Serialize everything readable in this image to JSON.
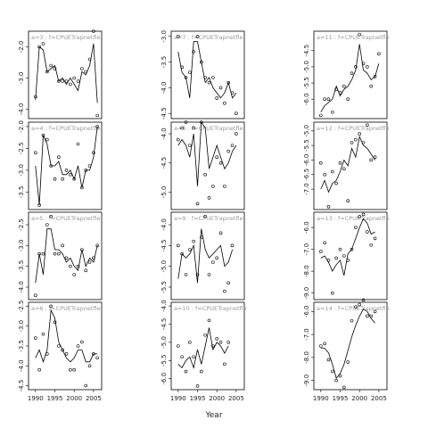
{
  "xlabel": "Year",
  "chart_data": [
    {
      "type": "scatter",
      "title": "a=3 : f=CPUETrapnetfle",
      "xlim": [
        1988.2,
        2007.1
      ],
      "x": [
        1990,
        1991,
        1992,
        1993,
        1994,
        1995,
        1996,
        1997,
        1998,
        1999,
        2000,
        2001,
        2002,
        2003,
        2004,
        2005,
        2006
      ],
      "values": [
        -3.6,
        -2.0,
        -1.9,
        -2.8,
        -2.6,
        -2.7,
        -3.1,
        -3.1,
        -3.1,
        -3.2,
        -3.0,
        -3.1,
        -2.7,
        -2.8,
        -2.4,
        -1.5,
        -4.2
      ],
      "fit": [
        -3.7,
        -2.0,
        -2.1,
        -2.8,
        -2.7,
        -2.6,
        -3.1,
        -3.0,
        -3.2,
        -3.0,
        -3.2,
        -3.4,
        -2.8,
        -2.9,
        -2.6,
        -1.9,
        -3.8
      ],
      "ylim": [
        -4.3,
        -1.5
      ],
      "yticks": [
        {
          "value": -2,
          "label": "-2.0"
        },
        {
          "value": -3,
          "label": "-3.0"
        },
        {
          "value": -4,
          "label": "-4.0"
        }
      ]
    },
    {
      "type": "scatter",
      "title": "a=4 : f=CPUETrapnetfle",
      "xlim": [
        1988.2,
        2007.1
      ],
      "x": [
        1990,
        1991,
        1992,
        1993,
        1994,
        1995,
        1996,
        1997,
        1998,
        1999,
        2000,
        2001,
        2002,
        2003,
        2004,
        2005,
        2006
      ],
      "values": [
        -2.6,
        -3.8,
        -2.2,
        -2.3,
        -2.9,
        -3.2,
        -2.7,
        -3.2,
        -3.0,
        -3.1,
        -3.2,
        -2.4,
        -3.4,
        -3.0,
        -2.9,
        -2.6,
        -2.0
      ],
      "fit": [
        -2.9,
        -3.8,
        -2.2,
        -2.4,
        -2.9,
        -2.9,
        -2.8,
        -3.1,
        -3.1,
        -3.0,
        -3.2,
        -2.9,
        -3.4,
        -3.0,
        -3.0,
        -2.7,
        -2.0
      ],
      "ylim": [
        -3.9,
        -1.9
      ],
      "yticks": [
        {
          "value": -2,
          "label": "-2.0"
        },
        -2.5,
        {
          "value": -3,
          "label": "-3.0"
        },
        -3.5
      ]
    },
    {
      "type": "scatter",
      "title": "a=5 : f=CPUETrapnetfle",
      "xlim": [
        1988.2,
        2007.1
      ],
      "x": [
        1990,
        1991,
        1992,
        1993,
        1994,
        1995,
        1996,
        1997,
        1998,
        1999,
        2000,
        2001,
        2002,
        2003,
        2004,
        2005,
        2006
      ],
      "values": [
        -4.2,
        -3.2,
        -3.2,
        -2.5,
        -2.3,
        -3.2,
        -3.2,
        -3.0,
        -3.3,
        -3.5,
        -3.7,
        -3.5,
        -3.1,
        -3.6,
        -3.4,
        -3.3,
        -3.0
      ],
      "fit": [
        -3.9,
        -3.2,
        -3.7,
        -2.6,
        -2.6,
        -3.1,
        -3.1,
        -3.2,
        -3.4,
        -3.3,
        -3.5,
        -3.6,
        -3.1,
        -3.5,
        -3.3,
        -3.4,
        -3.0
      ],
      "ylim": [
        -4.3,
        -2.2
      ],
      "yticks": [
        -2.5,
        {
          "value": -3,
          "label": "-3.0"
        },
        -3.5,
        {
          "value": -4,
          "label": "-4.0"
        }
      ]
    },
    {
      "type": "scatter",
      "title": "a=6 : f=CPUETrapnetfle",
      "xlim": [
        1988.2,
        2007.1
      ],
      "x": [
        1990,
        1991,
        1992,
        1993,
        1994,
        1995,
        1996,
        1997,
        1998,
        1999,
        2000,
        2001,
        2002,
        2003,
        2004,
        2005,
        2006
      ],
      "values": [
        -3.3,
        -4.1,
        -3.2,
        -3.7,
        -2.5,
        -2.9,
        -3.5,
        -3.6,
        -3.7,
        -4.1,
        -4.1,
        -3.5,
        -3.4,
        -4.5,
        -4.0,
        -3.7,
        -3.8
      ],
      "fit": [
        -3.8,
        -3.6,
        -3.9,
        -3.6,
        -2.6,
        -2.8,
        -3.4,
        -3.6,
        -3.8,
        -3.9,
        -3.8,
        -3.6,
        -3.6,
        -3.9,
        -3.9,
        -3.7,
        -3.7
      ],
      "ylim": [
        -4.6,
        -2.4
      ],
      "yticks": [
        -2.5,
        {
          "value": -3,
          "label": "-3.0"
        },
        -3.5,
        {
          "value": -4,
          "label": "-4.0"
        },
        -4.5
      ],
      "xticks": [
        1990,
        1995,
        2000,
        2005
      ]
    },
    {
      "type": "scatter",
      "title": "a=7 : f=CPUETrapnetfle",
      "xlim": [
        1988.2,
        2007.1
      ],
      "x": [
        1990,
        1991,
        1992,
        1993,
        1994,
        1995,
        1996,
        1997,
        1998,
        1999,
        2000,
        2001,
        2002,
        2003,
        2004,
        2005,
        2006
      ],
      "values": [
        -3.0,
        -3.6,
        -3.8,
        -3.7,
        -3.3,
        -3.0,
        -3.5,
        -3.8,
        -3.9,
        -3.8,
        -4.2,
        -4.0,
        -4.3,
        -3.9,
        -4.1,
        -4.5,
        null
      ],
      "fit": [
        -3.3,
        -3.7,
        -3.8,
        -4.2,
        -3.1,
        -3.1,
        -3.5,
        -3.9,
        -3.8,
        -4.0,
        -4.1,
        -4.2,
        -4.1,
        -3.9,
        -4.2,
        -4.1,
        null
      ],
      "ylim": [
        -4.6,
        -2.9
      ],
      "yticks": [
        {
          "value": -3,
          "label": "-3.0"
        },
        -3.5,
        {
          "value": -4,
          "label": "-4.0"
        },
        -4.5
      ]
    },
    {
      "type": "scatter",
      "title": "a=8 : f=CPUETrapnetfle",
      "xlim": [
        1988.2,
        2007.1
      ],
      "x": [
        1990,
        1991,
        1992,
        1993,
        1994,
        1995,
        1996,
        1997,
        1998,
        1999,
        2000,
        2001,
        2002,
        2003,
        2004,
        2005,
        2006
      ],
      "values": [
        -4.1,
        -3.9,
        -3.8,
        -4.2,
        -3.9,
        -5.2,
        -3.8,
        -4.7,
        -5.1,
        -4.9,
        -4.4,
        -4.5,
        -4.9,
        -4.3,
        -4.2,
        -4.0,
        null
      ],
      "fit": [
        -4.2,
        -4.1,
        -4.2,
        -4.4,
        -4.0,
        -4.9,
        -3.8,
        -3.9,
        -4.6,
        -4.4,
        -4.2,
        -4.4,
        -4.6,
        -4.5,
        -4.3,
        -4.2,
        null
      ],
      "ylim": [
        -5.3,
        -3.8
      ],
      "yticks": [
        {
          "value": -4,
          "label": "-4.0"
        },
        -4.5,
        {
          "value": -5,
          "label": "-5.0"
        }
      ]
    },
    {
      "type": "scatter",
      "title": "a=9 : f=CPUETrapnetfle",
      "xlim": [
        1988.2,
        2007.1
      ],
      "x": [
        1990,
        1991,
        1992,
        1993,
        1994,
        1995,
        1996,
        1997,
        1998,
        1999,
        2000,
        2001,
        2002,
        2003,
        2004,
        2005,
        2006
      ],
      "values": [
        -4.5,
        -4.7,
        -5.2,
        -4.6,
        -4.4,
        -5.2,
        -4.3,
        -3.8,
        -5.2,
        -4.9,
        -4.8,
        -4.2,
        -5.6,
        -5.4,
        -4.5,
        null,
        null
      ],
      "fit": [
        -5.3,
        -4.7,
        -4.8,
        -4.7,
        -4.5,
        -5.4,
        -4.1,
        -4.6,
        -4.8,
        -4.7,
        -4.6,
        -4.5,
        -5.0,
        -4.9,
        -4.6,
        null,
        null
      ],
      "ylim": [
        -5.8,
        -3.7
      ],
      "yticks": [
        {
          "value": -4,
          "label": "-4.0"
        },
        -4.5,
        {
          "value": -5,
          "label": "-5.0"
        },
        -5.5
      ]
    },
    {
      "type": "scatter",
      "title": "a=10 : f=CPUETrapnetfle",
      "xlim": [
        1988.2,
        2007.1
      ],
      "x": [
        1990,
        1991,
        1992,
        1993,
        1994,
        1995,
        1996,
        1997,
        1998,
        1999,
        2000,
        2001,
        2002,
        2003,
        2004,
        2005,
        2006
      ],
      "values": [
        -5.1,
        -5.4,
        -5.8,
        -5.0,
        -5.4,
        -6.2,
        -5.8,
        -4.8,
        -4.4,
        -5.1,
        -4.9,
        -5.0,
        -5.6,
        -5.0,
        null,
        null,
        null
      ],
      "fit": [
        -5.6,
        -5.7,
        -5.5,
        -5.4,
        -5.7,
        -5.2,
        -5.6,
        -5.1,
        -4.6,
        -5.2,
        -5.0,
        -5.1,
        -5.3,
        -5.1,
        null,
        null,
        null
      ],
      "ylim": [
        -6.3,
        -3.9
      ],
      "yticks": [
        {
          "value": -4,
          "label": "-4.0"
        },
        -4.5,
        {
          "value": -5,
          "label": "-5.0"
        },
        -5.5,
        {
          "value": -6,
          "label": "-6.0"
        }
      ],
      "xticks": [
        1990,
        1995,
        2000,
        2005
      ]
    },
    {
      "type": "scatter",
      "title": "a=11 : f=CPUETrapnetfle",
      "xlim": [
        1988.2,
        2007.1
      ],
      "x": [
        1990,
        1991,
        1992,
        1993,
        1994,
        1995,
        1996,
        1997,
        1998,
        1999,
        2000,
        2001,
        2002,
        2003,
        2004,
        2005,
        2006
      ],
      "values": [
        -6.5,
        -6.0,
        -6.0,
        -6.4,
        -5.7,
        -5.8,
        -5.6,
        -6.0,
        -5.2,
        -5.0,
        -4.0,
        -4.9,
        -5.0,
        -5.6,
        -5.3,
        -4.6,
        null
      ],
      "fit": [
        -6.4,
        -6.2,
        -6.1,
        -6.0,
        -5.6,
        -5.9,
        -5.7,
        -5.6,
        -5.4,
        -5.1,
        -4.3,
        -5.1,
        -5.2,
        -5.4,
        -5.3,
        -4.9,
        null
      ],
      "ylim": [
        -6.6,
        -3.9
      ],
      "yticks": [
        -4.5,
        {
          "value": -5,
          "label": "-5.0"
        },
        -5.5,
        {
          "value": -6,
          "label": "-6.0"
        }
      ]
    },
    {
      "type": "scatter",
      "title": "a=12 : f=CPUETrapnetfle",
      "xlim": [
        1988.2,
        2007.1
      ],
      "x": [
        1990,
        1991,
        1992,
        1993,
        1994,
        1995,
        1996,
        1997,
        1998,
        1999,
        2000,
        2001,
        2002,
        2003,
        2004,
        2005,
        2006
      ],
      "values": [
        -6.1,
        -6.5,
        -7.6,
        -6.4,
        -6.8,
        -6.1,
        -6.3,
        -7.4,
        -5.4,
        -5.3,
        -5.1,
        -5.4,
        -4.8,
        -6.0,
        -5.9,
        null,
        null
      ],
      "fit": [
        -7.0,
        -6.7,
        -7.1,
        -6.8,
        -6.7,
        -6.4,
        -6.0,
        -6.2,
        -5.6,
        -5.9,
        -5.2,
        -5.5,
        -5.6,
        -5.8,
        -6.0,
        null,
        null
      ],
      "ylim": [
        -7.7,
        -4.7
      ],
      "yticks": [
        {
          "value": -5,
          "label": "-5.0"
        },
        -5.5,
        {
          "value": -6,
          "label": "-6.0"
        },
        -6.5,
        {
          "value": -7,
          "label": "-7.0"
        }
      ]
    },
    {
      "type": "scatter",
      "title": "a=13 : f=CPUETrapnetfle",
      "xlim": [
        1988.2,
        2007.1
      ],
      "x": [
        1990,
        1991,
        1992,
        1993,
        1994,
        1995,
        1996,
        1997,
        1998,
        1999,
        2000,
        2001,
        2002,
        2003,
        2004,
        2005,
        2006
      ],
      "values": [
        -7.1,
        -6.7,
        -7.5,
        -9.0,
        -7.4,
        -7.0,
        -7.3,
        -7.5,
        -7.0,
        -6.0,
        -5.5,
        -5.4,
        -6.2,
        -6.8,
        -6.5,
        null,
        null
      ],
      "fit": [
        -7.4,
        -7.3,
        -7.6,
        -8.0,
        -7.7,
        -7.5,
        -8.2,
        -7.2,
        -7.0,
        -6.5,
        -6.0,
        -5.6,
        -5.8,
        -6.3,
        -6.2,
        null,
        null
      ],
      "ylim": [
        -9.3,
        -5.3
      ],
      "yticks": [
        {
          "value": -6,
          "label": "-6.0"
        },
        {
          "value": -7,
          "label": "-7.0"
        },
        {
          "value": -8,
          "label": "-8.0"
        },
        {
          "value": -9,
          "label": "-9.0"
        }
      ]
    },
    {
      "type": "scatter",
      "title": "a=14 : f=CPUETrapnetfle",
      "xlim": [
        1988.2,
        2007.1
      ],
      "x": [
        1990,
        1991,
        1992,
        1993,
        1994,
        1995,
        1996,
        1997,
        1998,
        1999,
        2000,
        2001,
        2002,
        2003,
        2004,
        2005,
        2006
      ],
      "values": [
        -7.5,
        -7.4,
        -8.1,
        -8.6,
        -9.0,
        -8.8,
        -9.3,
        -8.2,
        -6.4,
        -5.8,
        -5.7,
        -5.5,
        -6.2,
        -6.2,
        -6.0,
        null,
        null
      ],
      "fit": [
        -7.6,
        -7.6,
        -7.8,
        -8.3,
        -8.9,
        -8.7,
        -8.3,
        -7.7,
        -7.1,
        -6.6,
        -6.2,
        -5.9,
        -6.0,
        -6.3,
        -6.5,
        null,
        null
      ],
      "ylim": [
        -9.4,
        -5.6
      ],
      "yticks": [
        {
          "value": -6,
          "label": "-6.0"
        },
        {
          "value": -7,
          "label": "-7.0"
        },
        {
          "value": -8,
          "label": "-8.0"
        },
        {
          "value": -9,
          "label": "-9.0"
        }
      ],
      "xticks": [
        1990,
        1995,
        2000,
        2005
      ]
    }
  ]
}
